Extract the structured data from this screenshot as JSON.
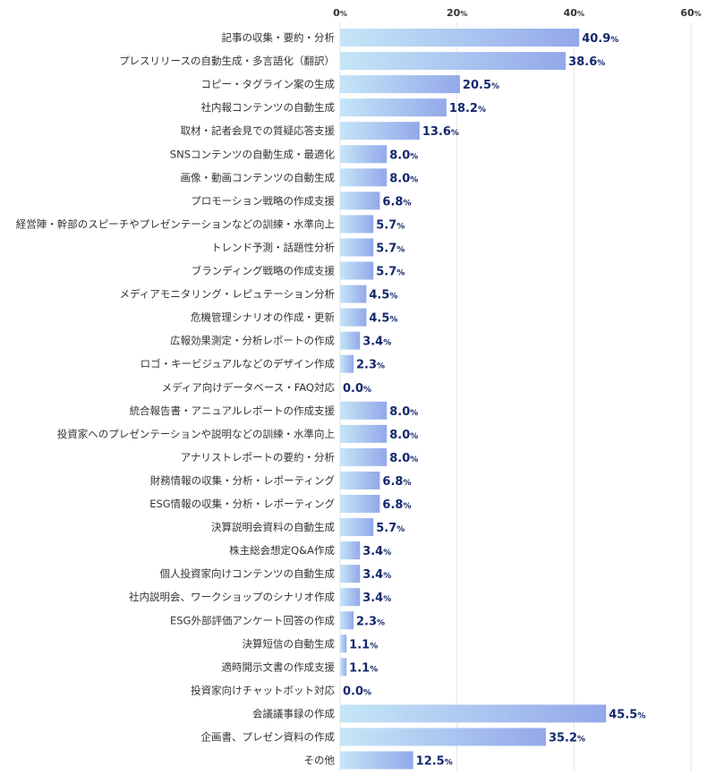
{
  "chart_data": {
    "type": "bar",
    "orientation": "horizontal",
    "xlim": [
      0,
      60
    ],
    "ticks": [
      0,
      20,
      40,
      60
    ],
    "tick_suffix": "%",
    "value_suffix": "%",
    "grid": true,
    "colors": {
      "bar_start": "#c5e6f7",
      "bar_end": "#93a8ea",
      "value_text": "#14286e",
      "grid": "#e6e6e6"
    },
    "categories": [
      "記事の収集・要約・分析",
      "プレスリリースの自動生成・多言語化（翻訳）",
      "コピー・タグライン案の生成",
      "社内報コンテンツの自動生成",
      "取材・記者会見での質疑応答支援",
      "SNSコンテンツの自動生成・最適化",
      "画像・動画コンテンツの自動生成",
      "プロモーション戦略の作成支援",
      "経営陣・幹部のスピーチやプレゼンテーションなどの訓練・水準向上",
      "トレンド予測・話題性分析",
      "ブランディング戦略の作成支援",
      "メディアモニタリング・レピュテーション分析",
      "危機管理シナリオの作成・更新",
      "広報効果測定・分析レポートの作成",
      "ロゴ・キービジュアルなどのデザイン作成",
      "メディア向けデータベース・FAQ対応",
      "統合報告書・アニュアルレポートの作成支援",
      "投資家へのプレゼンテーションや説明などの訓練・水準向上",
      "アナリストレポートの要約・分析",
      "財務情報の収集・分析・レポーティング",
      "ESG情報の収集・分析・レポーティング",
      "決算説明会資料の自動生成",
      "株主総会想定Q&A作成",
      "個人投資家向けコンテンツの自動生成",
      "社内説明会、ワークショップのシナリオ作成",
      "ESG外部評価アンケート回答の作成",
      "決算短信の自動生成",
      "適時開示文書の作成支援",
      "投資家向けチャットボット対応",
      "会議議事録の作成",
      "企画書、プレゼン資料の作成",
      "その他"
    ],
    "values": [
      40.9,
      38.6,
      20.5,
      18.2,
      13.6,
      8.0,
      8.0,
      6.8,
      5.7,
      5.7,
      5.7,
      4.5,
      4.5,
      3.4,
      2.3,
      0.0,
      8.0,
      8.0,
      8.0,
      6.8,
      6.8,
      5.7,
      3.4,
      3.4,
      3.4,
      2.3,
      1.1,
      1.1,
      0.0,
      45.5,
      35.2,
      12.5
    ]
  }
}
